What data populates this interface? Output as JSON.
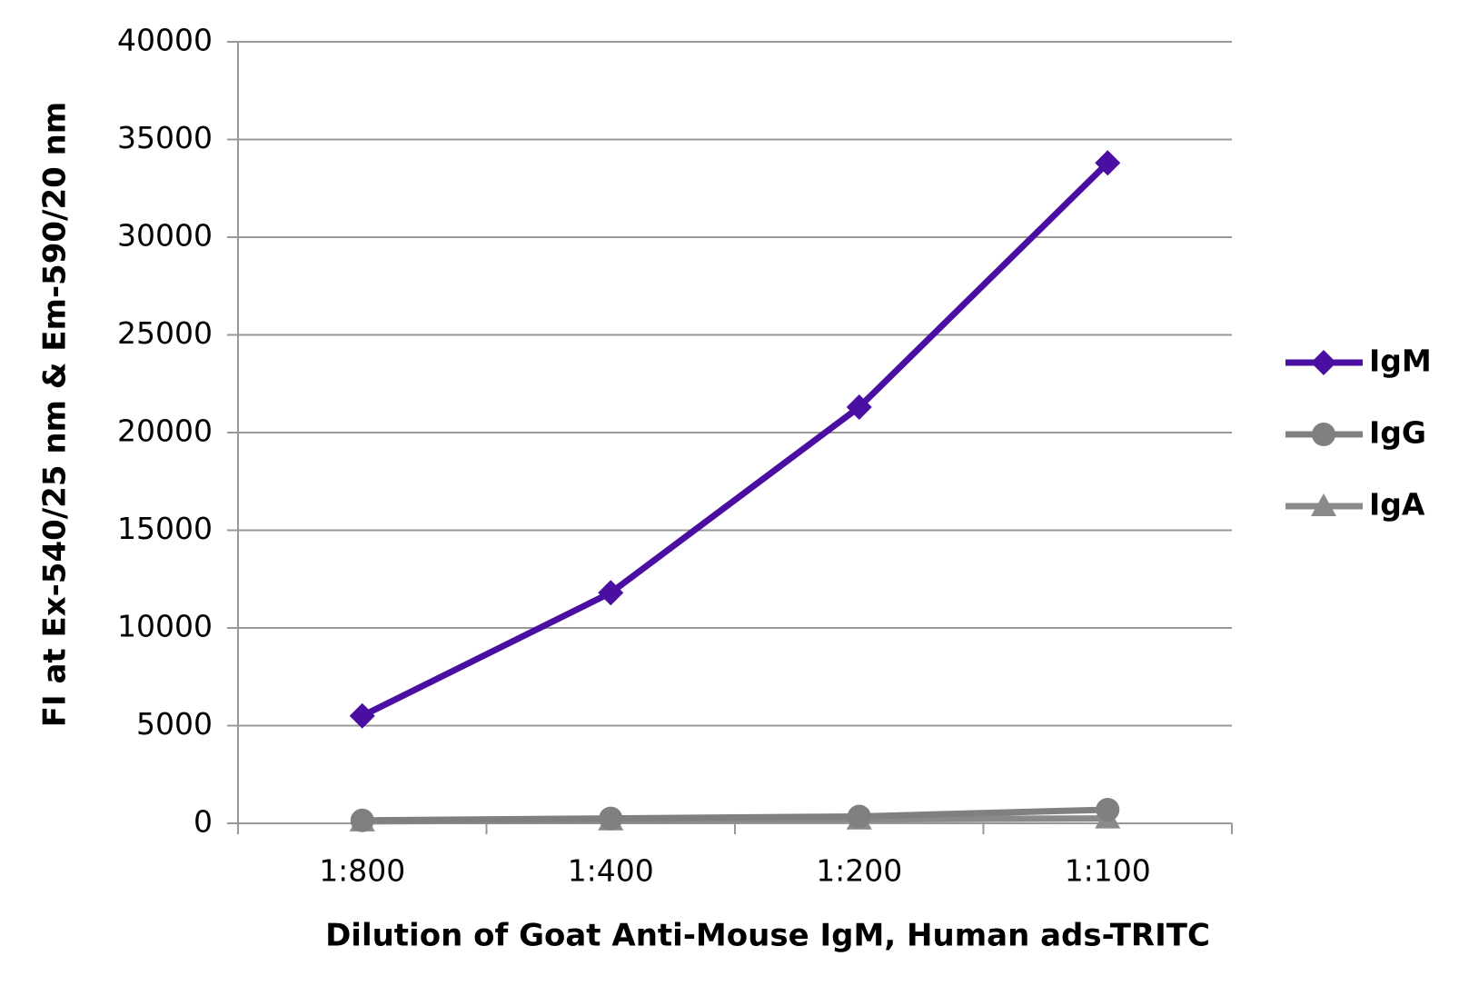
{
  "chart_data": {
    "type": "line",
    "xlabel": "Dilution of Goat Anti-Mouse IgM, Human ads-TRITC",
    "ylabel": "FI at Ex-540/25 nm & Em-590/20 nm",
    "categories": [
      "1:800",
      "1:400",
      "1:200",
      "1:100"
    ],
    "series": [
      {
        "name": "IgM",
        "color": "#4b0ea3",
        "marker": "diamond",
        "values": [
          5500,
          11800,
          21300,
          33800
        ]
      },
      {
        "name": "IgG",
        "color": "#808080",
        "marker": "circle",
        "values": [
          150,
          250,
          350,
          700
        ]
      },
      {
        "name": "IgA",
        "color": "#8a8a8a",
        "marker": "triangle",
        "values": [
          100,
          150,
          200,
          250
        ]
      }
    ],
    "ylim": [
      0,
      40000
    ],
    "yticks": [
      0,
      5000,
      10000,
      15000,
      20000,
      25000,
      30000,
      35000,
      40000
    ],
    "grid": true,
    "legend": "right"
  }
}
